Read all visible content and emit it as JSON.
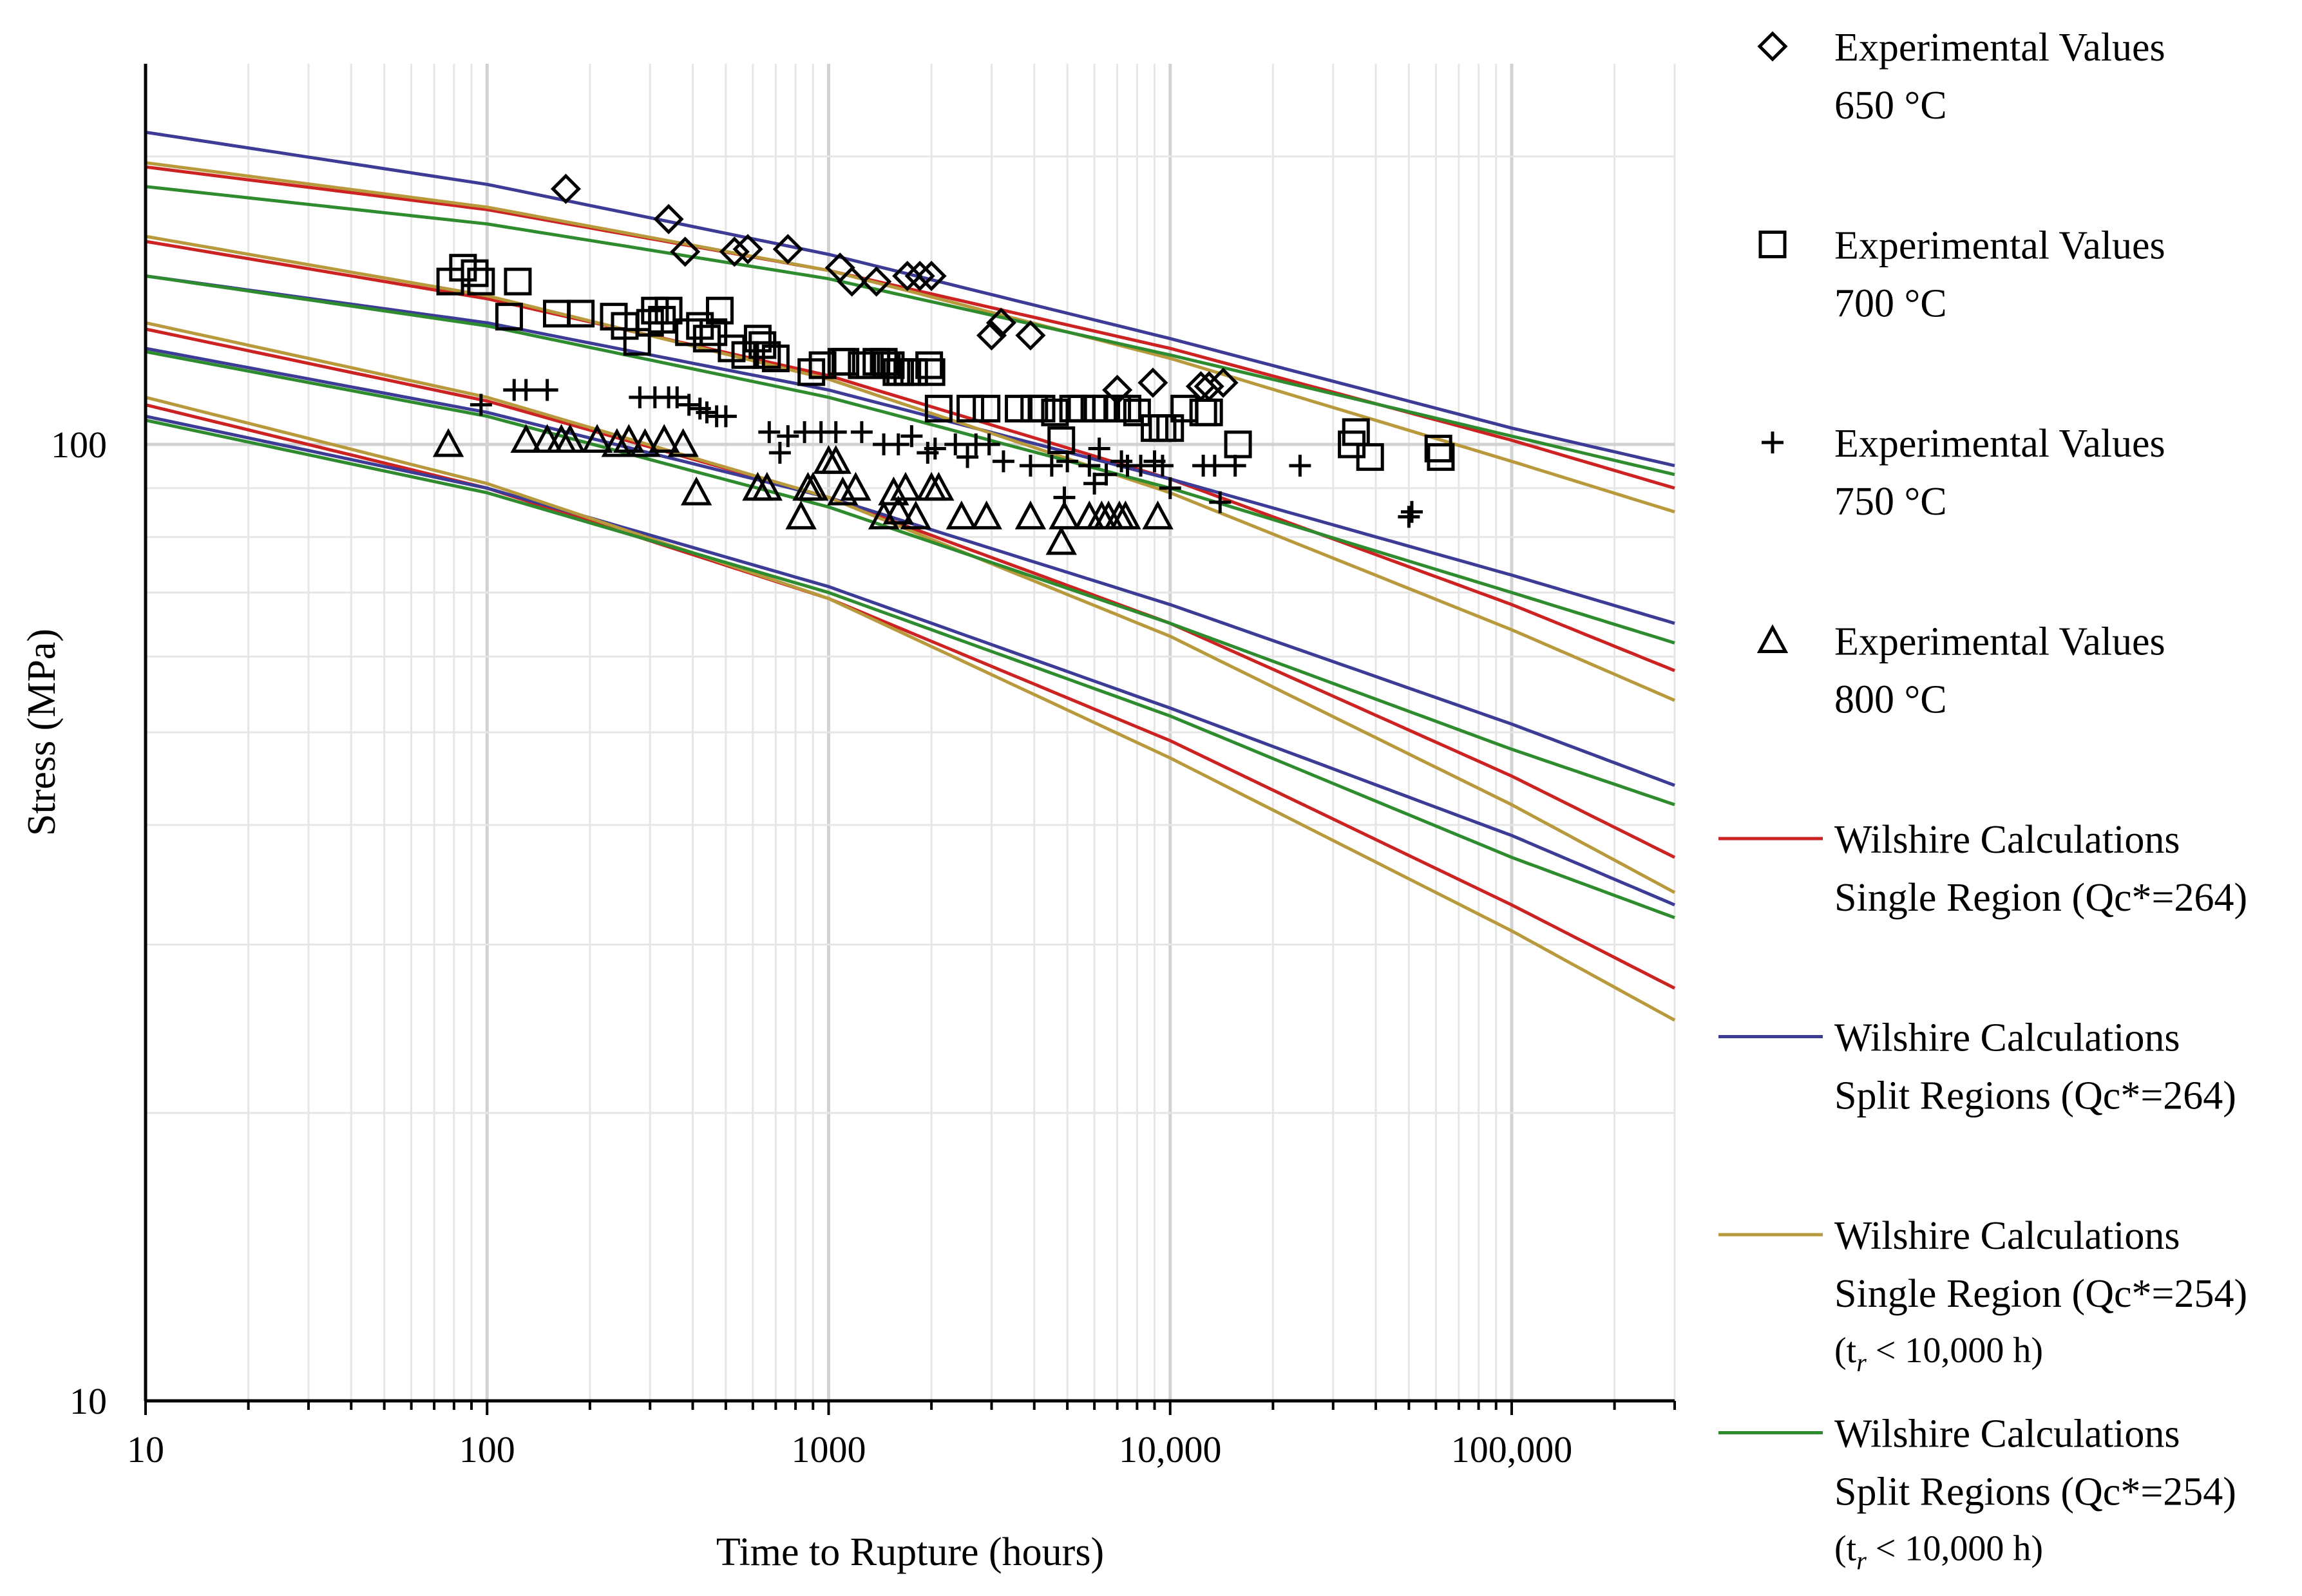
{
  "chart_data": {
    "type": "scatter",
    "title": "",
    "xlabel": "Time to Rupture (hours)",
    "ylabel": "Stress (MPa)",
    "xscale": "log",
    "yscale": "log",
    "xlim": [
      10,
      300000
    ],
    "ylim": [
      10,
      250
    ],
    "grid": true,
    "legend_position": "right",
    "x_tick_labels": [
      {
        "value": 10,
        "label": "10"
      },
      {
        "value": 100,
        "label": "100"
      },
      {
        "value": 1000,
        "label": "1000"
      },
      {
        "value": 10000,
        "label": "10,000"
      },
      {
        "value": 100000,
        "label": "100,000"
      }
    ],
    "y_tick_labels": [
      {
        "value": 10,
        "label": "10"
      },
      {
        "value": 100,
        "label": "100"
      }
    ],
    "scatter_series": [
      {
        "name": "Experimental Values 650 °C",
        "legend_line1": "Experimental Values",
        "legend_line2": "650 °C",
        "marker": "diamond",
        "points": [
          [
            170,
            185
          ],
          [
            340,
            172
          ],
          [
            380,
            159
          ],
          [
            530,
            159
          ],
          [
            580,
            160
          ],
          [
            760,
            160
          ],
          [
            1080,
            153
          ],
          [
            1170,
            148
          ],
          [
            1380,
            148
          ],
          [
            1700,
            150
          ],
          [
            1850,
            150
          ],
          [
            2000,
            150
          ],
          [
            3000,
            130
          ],
          [
            3200,
            134
          ],
          [
            3900,
            130
          ],
          [
            7000,
            114
          ],
          [
            8900,
            116
          ],
          [
            12300,
            115
          ],
          [
            13000,
            115
          ],
          [
            14300,
            116
          ]
        ]
      },
      {
        "name": "Experimental Values 700 °C",
        "legend_line1": "Experimental Values",
        "legend_line2": "700 °C",
        "marker": "square",
        "points": [
          [
            78,
            148
          ],
          [
            85,
            153
          ],
          [
            92,
            151
          ],
          [
            96,
            148
          ],
          [
            116,
            136
          ],
          [
            123,
            148
          ],
          [
            160,
            137
          ],
          [
            188,
            137
          ],
          [
            235,
            136
          ],
          [
            253,
            133
          ],
          [
            275,
            128
          ],
          [
            300,
            134
          ],
          [
            310,
            138
          ],
          [
            325,
            135
          ],
          [
            340,
            138
          ],
          [
            390,
            131
          ],
          [
            420,
            133
          ],
          [
            440,
            129
          ],
          [
            460,
            131
          ],
          [
            480,
            138
          ],
          [
            520,
            126
          ],
          [
            570,
            124
          ],
          [
            620,
            129
          ],
          [
            640,
            127
          ],
          [
            660,
            124
          ],
          [
            700,
            123
          ],
          [
            890,
            119
          ],
          [
            960,
            121
          ],
          [
            1090,
            122
          ],
          [
            1120,
            122
          ],
          [
            1250,
            121
          ],
          [
            1320,
            121
          ],
          [
            1380,
            122
          ],
          [
            1450,
            122
          ],
          [
            1480,
            121
          ],
          [
            1520,
            121
          ],
          [
            1580,
            119
          ],
          [
            1620,
            119
          ],
          [
            1700,
            119
          ],
          [
            1780,
            119
          ],
          [
            1970,
            121
          ],
          [
            2000,
            119
          ],
          [
            2100,
            109
          ],
          [
            2600,
            109
          ],
          [
            2900,
            109
          ],
          [
            3600,
            109
          ],
          [
            4000,
            109
          ],
          [
            4200,
            109
          ],
          [
            4600,
            108
          ],
          [
            4800,
            101
          ],
          [
            5200,
            109
          ],
          [
            5500,
            109
          ],
          [
            6000,
            109
          ],
          [
            6500,
            109
          ],
          [
            7000,
            109
          ],
          [
            7500,
            109
          ],
          [
            8000,
            108
          ],
          [
            9000,
            104
          ],
          [
            9500,
            104
          ],
          [
            10000,
            104
          ],
          [
            11000,
            109
          ],
          [
            12500,
            108
          ],
          [
            13000,
            108
          ],
          [
            15800,
            100
          ],
          [
            34000,
            100
          ],
          [
            35000,
            103
          ],
          [
            38500,
            97
          ],
          [
            61000,
            99
          ],
          [
            62000,
            97
          ]
        ]
      },
      {
        "name": "Experimental Values 750 °C",
        "legend_line1": "Experimental Values",
        "legend_line2": "750 °C",
        "marker": "plus",
        "points": [
          [
            96,
            110
          ],
          [
            120,
            114
          ],
          [
            130,
            114
          ],
          [
            150,
            114
          ],
          [
            280,
            112
          ],
          [
            310,
            112
          ],
          [
            340,
            112
          ],
          [
            360,
            112
          ],
          [
            390,
            110
          ],
          [
            420,
            109
          ],
          [
            440,
            108
          ],
          [
            470,
            107
          ],
          [
            500,
            107
          ],
          [
            670,
            103
          ],
          [
            720,
            98
          ],
          [
            760,
            102
          ],
          [
            850,
            103
          ],
          [
            950,
            103
          ],
          [
            1050,
            103
          ],
          [
            1250,
            103
          ],
          [
            1750,
            102
          ],
          [
            1450,
            100
          ],
          [
            1600,
            100
          ],
          [
            1950,
            98
          ],
          [
            2050,
            99
          ],
          [
            2350,
            100
          ],
          [
            2550,
            97
          ],
          [
            2700,
            100
          ],
          [
            2950,
            100
          ],
          [
            3250,
            96
          ],
          [
            3900,
            95
          ],
          [
            4500,
            95
          ],
          [
            4900,
            88
          ],
          [
            5000,
            96
          ],
          [
            5800,
            95
          ],
          [
            6000,
            91
          ],
          [
            6200,
            99
          ],
          [
            6500,
            93
          ],
          [
            7200,
            96
          ],
          [
            7500,
            95
          ],
          [
            8200,
            95
          ],
          [
            9000,
            96
          ],
          [
            9500,
            95
          ],
          [
            10000,
            90
          ],
          [
            12500,
            95
          ],
          [
            13500,
            95
          ],
          [
            14000,
            87
          ],
          [
            15500,
            95
          ],
          [
            24000,
            95
          ],
          [
            50000,
            84
          ],
          [
            51000,
            85
          ]
        ]
      },
      {
        "name": "Experimental Values 800 °C",
        "legend_line1": "Experimental Values",
        "legend_line2": "800 °C",
        "marker": "triangle",
        "points": [
          [
            77,
            100
          ],
          [
            130,
            101
          ],
          [
            150,
            101
          ],
          [
            165,
            101
          ],
          [
            175,
            101
          ],
          [
            210,
            101
          ],
          [
            240,
            100
          ],
          [
            260,
            101
          ],
          [
            290,
            100
          ],
          [
            330,
            101
          ],
          [
            375,
            100
          ],
          [
            410,
            89
          ],
          [
            620,
            90
          ],
          [
            660,
            90
          ],
          [
            830,
            84
          ],
          [
            870,
            90
          ],
          [
            900,
            90
          ],
          [
            1000,
            96
          ],
          [
            1050,
            96
          ],
          [
            1100,
            89
          ],
          [
            1200,
            90
          ],
          [
            1450,
            84
          ],
          [
            1550,
            89
          ],
          [
            1600,
            85
          ],
          [
            1680,
            90
          ],
          [
            1800,
            84
          ],
          [
            2000,
            90
          ],
          [
            2100,
            90
          ],
          [
            2450,
            84
          ],
          [
            2900,
            84
          ],
          [
            3900,
            84
          ],
          [
            4900,
            84
          ],
          [
            4800,
            79
          ],
          [
            5800,
            84
          ],
          [
            6300,
            84
          ],
          [
            6600,
            84
          ],
          [
            7100,
            84
          ],
          [
            7400,
            84
          ],
          [
            9200,
            84
          ]
        ]
      }
    ],
    "curve_series": [
      {
        "name": "Wilshire Calculations Single Region (Qc*=264)",
        "legend_line1": "Wilshire Calculations",
        "legend_line2": "Single Region (Qc*=264)",
        "color": "#cc2222",
        "curves": [
          {
            "temp": "650 °C",
            "x": [
              10,
              100,
              1000,
              10000,
              100000,
              300000
            ],
            "y": [
              195,
              176,
              152,
              126,
              101,
              90
            ]
          },
          {
            "temp": "700 °C",
            "x": [
              10,
              100,
              1000,
              10000,
              100000,
              300000
            ],
            "y": [
              163,
              142,
              118,
              92,
              68,
              58
            ]
          },
          {
            "temp": "750 °C",
            "x": [
              10,
              100,
              1000,
              10000,
              100000,
              300000
            ],
            "y": [
              132,
              111,
              88,
              65,
              45,
              37
            ]
          },
          {
            "temp": "800 °C",
            "x": [
              10,
              100,
              1000,
              10000,
              100000,
              300000
            ],
            "y": [
              110,
              90,
              69,
              49,
              33,
              27
            ]
          }
        ]
      },
      {
        "name": "Wilshire Calculations Split Regions (Qc*=264)",
        "legend_line1": "Wilshire Calculations",
        "legend_line2": "Split Regions (Qc*=264)",
        "color": "#3c3c96",
        "curves": [
          {
            "temp": "650 °C",
            "x": [
              10,
              100,
              1000,
              10000,
              100000,
              300000
            ],
            "y": [
              212,
              187,
              158,
              129,
              104,
              95
            ]
          },
          {
            "temp": "700 °C",
            "x": [
              10,
              100,
              1000,
              10000,
              100000,
              300000
            ],
            "y": [
              150,
              134,
              114,
              92,
              73,
              65
            ]
          },
          {
            "temp": "750 °C",
            "x": [
              10,
              100,
              1000,
              10000,
              100000,
              300000
            ],
            "y": [
              126,
              108,
              88,
              68,
              51,
              44
            ]
          },
          {
            "temp": "800 °C",
            "x": [
              10,
              100,
              1000,
              10000,
              100000,
              300000
            ],
            "y": [
              107,
              90,
              71,
              53,
              39,
              33
            ]
          }
        ]
      },
      {
        "name": "Wilshire Calculations Single Region (Qc*=254) (tr < 10,000 h)",
        "legend_line1": "Wilshire Calculations",
        "legend_line2": "Single Region (Qc*=254)",
        "legend_note_prefix": "(t",
        "legend_note_sub": "r",
        "legend_note_suffix": " < 10,000 h)",
        "color": "#b8993c",
        "curves": [
          {
            "temp": "650 °C",
            "x": [
              10,
              100,
              1000,
              10000,
              100000,
              300000
            ],
            "y": [
              197,
              177,
              152,
              123,
              96,
              85
            ]
          },
          {
            "temp": "700 °C",
            "x": [
              10,
              100,
              1000,
              10000,
              100000,
              300000
            ],
            "y": [
              165,
              143,
              117,
              89,
              64,
              54
            ]
          },
          {
            "temp": "750 °C",
            "x": [
              10,
              100,
              1000,
              10000,
              100000,
              300000
            ],
            "y": [
              134,
              112,
              88,
              63,
              42,
              34
            ]
          },
          {
            "temp": "800 °C",
            "x": [
              10,
              100,
              1000,
              10000,
              100000,
              300000
            ],
            "y": [
              112,
              91,
              69,
              47,
              31,
              25
            ]
          }
        ]
      },
      {
        "name": "Wilshire Calculations Split Regions (Qc*=254) (tr < 10,000 h)",
        "legend_line1": "Wilshire Calculations",
        "legend_line2": "Split Regions (Qc*=254)",
        "legend_note_prefix": "(t",
        "legend_note_sub": "r",
        "legend_note_suffix": " < 10,000 h)",
        "color": "#2e8b2e",
        "curves": [
          {
            "temp": "650 °C",
            "x": [
              10,
              100,
              1000,
              10000,
              100000,
              300000
            ],
            "y": [
              186,
              170,
              149,
              124,
              102,
              93
            ]
          },
          {
            "temp": "700 °C",
            "x": [
              10,
              100,
              1000,
              10000,
              100000,
              300000
            ],
            "y": [
              150,
              133,
              112,
              90,
              70,
              62
            ]
          },
          {
            "temp": "750 °C",
            "x": [
              10,
              100,
              1000,
              10000,
              100000,
              300000
            ],
            "y": [
              125,
              107,
              86,
              65,
              48,
              42
            ]
          },
          {
            "temp": "800 °C",
            "x": [
              10,
              100,
              1000,
              10000,
              100000,
              300000
            ],
            "y": [
              106,
              89,
              70,
              52,
              37,
              32
            ]
          }
        ]
      }
    ]
  }
}
